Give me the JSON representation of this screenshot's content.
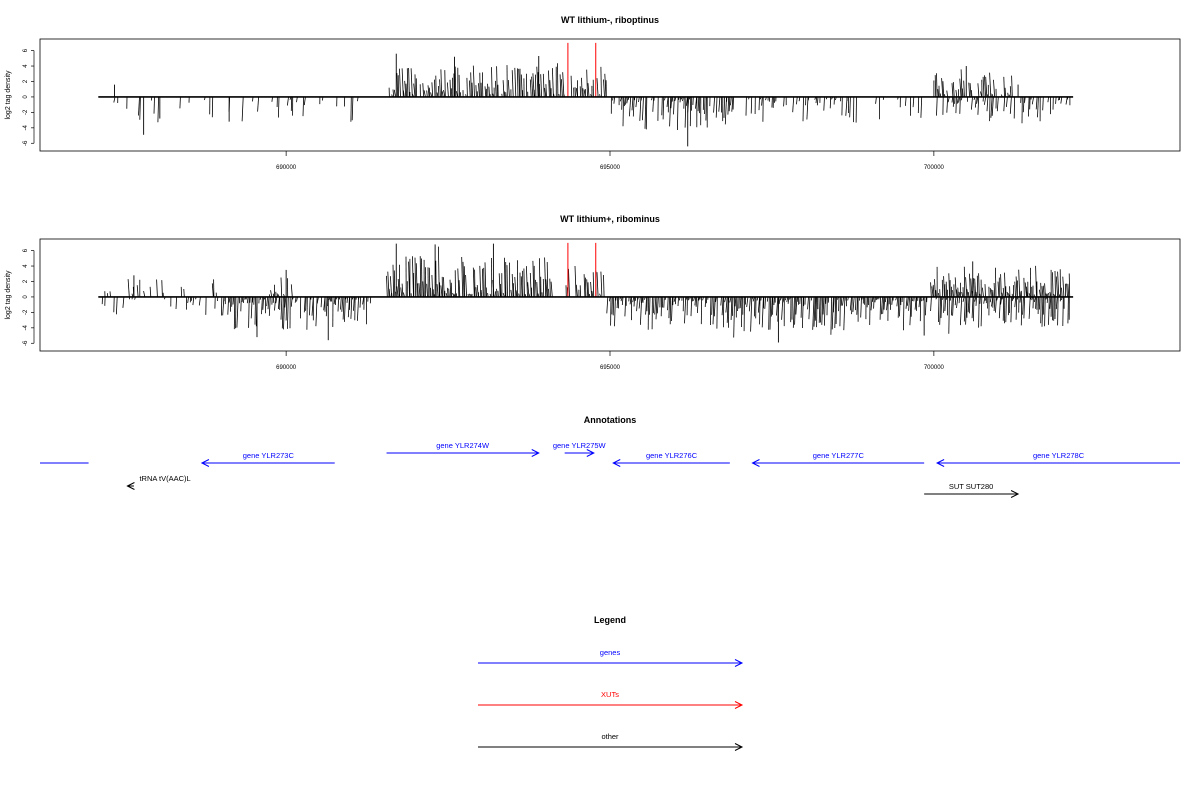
{
  "chart_data": [
    {
      "type": "bar",
      "title": "WT lithium-, riboptinus",
      "ylabel": "log2 tag density",
      "xlabel": "",
      "ylim": [
        -7,
        7.5
      ],
      "xlim": [
        686200,
        703800
      ],
      "yticks": [
        "-6",
        "-4",
        "-2",
        "0",
        "2",
        "4",
        "6"
      ],
      "ytick_values": [
        -6,
        -4,
        -2,
        0,
        2,
        4,
        6
      ],
      "xticks": [
        "690000",
        "695000",
        "700000"
      ],
      "xtick_values": [
        690000,
        695000,
        700000
      ],
      "grid": false,
      "baseline": [
        687100,
        702150
      ],
      "segments": [
        {
          "x0": 687100,
          "x1": 687150,
          "sign": -1,
          "density": 0.15,
          "amp": 2.6,
          "seed": 11
        },
        {
          "x0": 687300,
          "x1": 691350,
          "sign": -1,
          "density": 0.16,
          "amp": 2.4,
          "seed": 12
        },
        {
          "x0": 691550,
          "x1": 694300,
          "sign": 1,
          "density": 0.78,
          "amp": 3.0,
          "seed": 13
        },
        {
          "x0": 694400,
          "x1": 694950,
          "sign": 1,
          "density": 0.5,
          "amp": 2.7,
          "seed": 14
        },
        {
          "x0": 694980,
          "x1": 696900,
          "sign": -1,
          "density": 0.75,
          "amp": 3.2,
          "seed": 15
        },
        {
          "x0": 697100,
          "x1": 698800,
          "sign": -1,
          "density": 0.45,
          "amp": 2.5,
          "seed": 16
        },
        {
          "x0": 699000,
          "x1": 699800,
          "sign": -1,
          "density": 0.2,
          "amp": 2.2,
          "seed": 17
        },
        {
          "x0": 700000,
          "x1": 701200,
          "sign": 1,
          "density": 0.55,
          "amp": 2.3,
          "seed": 18
        },
        {
          "x0": 700000,
          "x1": 702100,
          "sign": -1,
          "density": 0.45,
          "amp": 2.5,
          "seed": 19
        }
      ],
      "peaks": [
        {
          "x": 687350,
          "y": 1.6
        },
        {
          "x": 687800,
          "y": -4.9
        },
        {
          "x": 688050,
          "y": -2.8
        },
        {
          "x": 689120,
          "y": -3.2
        },
        {
          "x": 691700,
          "y": 5.6
        },
        {
          "x": 692600,
          "y": 5.2
        },
        {
          "x": 693900,
          "y": 5.3
        },
        {
          "x": 696200,
          "y": -6.4
        },
        {
          "x": 700500,
          "y": 4.0
        },
        {
          "x": 701300,
          "y": 1.6
        }
      ],
      "xut_lines": [
        {
          "x": 694350,
          "y": 7.0
        },
        {
          "x": 694780,
          "y": 7.0
        }
      ]
    },
    {
      "type": "bar",
      "title": "WT lithium+, ribominus",
      "ylabel": "log2 tag density",
      "xlabel": "",
      "ylim": [
        -7,
        7.5
      ],
      "xlim": [
        686200,
        703800
      ],
      "yticks": [
        "-6",
        "-4",
        "-2",
        "0",
        "2",
        "4",
        "6"
      ],
      "ytick_values": [
        -6,
        -4,
        -2,
        0,
        2,
        4,
        6
      ],
      "xticks": [
        "690000",
        "695000",
        "700000"
      ],
      "xtick_values": [
        690000,
        695000,
        700000
      ],
      "grid": false,
      "baseline": [
        687100,
        702150
      ],
      "segments": [
        {
          "x0": 687100,
          "x1": 689000,
          "sign": 1,
          "density": 0.2,
          "amp": 1.8,
          "seed": 21
        },
        {
          "x0": 687100,
          "x1": 689000,
          "sign": -1,
          "density": 0.25,
          "amp": 2.0,
          "seed": 22
        },
        {
          "x0": 689000,
          "x1": 691300,
          "sign": -1,
          "density": 0.85,
          "amp": 3.2,
          "seed": 23
        },
        {
          "x0": 689700,
          "x1": 690100,
          "sign": 1,
          "density": 0.5,
          "amp": 1.8,
          "seed": 24
        },
        {
          "x0": 691550,
          "x1": 694100,
          "sign": 1,
          "density": 0.95,
          "amp": 4.0,
          "seed": 25
        },
        {
          "x0": 694300,
          "x1": 694900,
          "sign": 1,
          "density": 0.6,
          "amp": 3.0,
          "seed": 26
        },
        {
          "x0": 694950,
          "x1": 699900,
          "sign": -1,
          "density": 0.9,
          "amp": 3.3,
          "seed": 27
        },
        {
          "x0": 699950,
          "x1": 702100,
          "sign": 1,
          "density": 0.9,
          "amp": 3.0,
          "seed": 28
        },
        {
          "x0": 699950,
          "x1": 702100,
          "sign": -1,
          "density": 0.85,
          "amp": 3.0,
          "seed": 29
        }
      ],
      "peaks": [
        {
          "x": 687650,
          "y": 2.8
        },
        {
          "x": 689550,
          "y": -5.2
        },
        {
          "x": 690000,
          "y": 3.5
        },
        {
          "x": 690650,
          "y": -5.6
        },
        {
          "x": 691700,
          "y": 6.9
        },
        {
          "x": 692300,
          "y": 6.8
        },
        {
          "x": 693200,
          "y": 6.9
        },
        {
          "x": 697600,
          "y": -5.9
        },
        {
          "x": 699850,
          "y": -5.0
        },
        {
          "x": 700600,
          "y": 4.6
        }
      ],
      "xut_lines": [
        {
          "x": 694350,
          "y": 7.0
        },
        {
          "x": 694780,
          "y": 7.0
        }
      ]
    }
  ],
  "annotations": {
    "title": "Annotations",
    "xlim": [
      686200,
      703800
    ],
    "features": [
      {
        "label": "",
        "start": 686200,
        "end": 686950,
        "strand": "+",
        "color": "#0000ff",
        "row": 0
      },
      {
        "label": "gene YLR273C",
        "start": 688700,
        "end": 690750,
        "strand": "-",
        "color": "#0000ff",
        "row": 0
      },
      {
        "label": "gene YLR274W",
        "start": 691550,
        "end": 693900,
        "strand": "+",
        "color": "#0000ff",
        "row": -1
      },
      {
        "label": "gene YLR275W",
        "start": 694300,
        "end": 694750,
        "strand": "+",
        "color": "#0000ff",
        "row": -1
      },
      {
        "label": "gene YLR276C",
        "start": 695050,
        "end": 696850,
        "strand": "-",
        "color": "#0000ff",
        "row": 0
      },
      {
        "label": "gene YLR277C",
        "start": 697200,
        "end": 699850,
        "strand": "-",
        "color": "#0000ff",
        "row": 0
      },
      {
        "label": "gene YLR278C",
        "start": 700050,
        "end": 703800,
        "strand": "-",
        "color": "#0000ff",
        "row": 0
      },
      {
        "label": "tRNA tV(AAC)L",
        "start": 687550,
        "end": 687650,
        "strand": "-",
        "color": "#000000",
        "row": 1
      },
      {
        "label": "SUT SUT280",
        "start": 699850,
        "end": 701300,
        "strand": "+",
        "color": "#000000",
        "row": 2
      }
    ]
  },
  "legend": {
    "title": "Legend",
    "items": [
      {
        "label": "genes",
        "color": "#0000ff"
      },
      {
        "label": "XUTs",
        "color": "#ff0000"
      },
      {
        "label": "other",
        "color": "#000000"
      }
    ]
  }
}
